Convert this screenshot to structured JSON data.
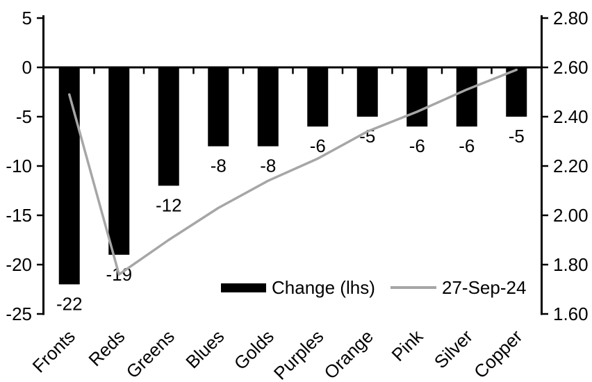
{
  "chart_data": {
    "type": "bar+line",
    "title": "",
    "background": "#ffffff",
    "categories": [
      "Fronts",
      "Reds",
      "Greens",
      "Blues",
      "Golds",
      "Purples",
      "Orange",
      "Pink",
      "Silver",
      "Copper"
    ],
    "series": [
      {
        "name": "Change (lhs)",
        "type": "bar",
        "axis": "left",
        "color": "#000000",
        "values": [
          -22,
          -19,
          -12,
          -8,
          -8,
          -6,
          -5,
          -6,
          -6,
          -5
        ],
        "data_labels": [
          "-22",
          "-19",
          "-12",
          "-8",
          "-8",
          "-6",
          "-5",
          "-6",
          "-6",
          "-5"
        ]
      },
      {
        "name": "27-Sep-24",
        "type": "line",
        "axis": "right",
        "color": "#a6a6a6",
        "values": [
          2.49,
          1.76,
          1.9,
          2.03,
          2.14,
          2.23,
          2.34,
          2.42,
          2.51,
          2.59
        ]
      }
    ],
    "left_axis": {
      "min": -25,
      "max": 5,
      "ticks": [
        "5",
        "0",
        "-5",
        "-10",
        "-15",
        "-20",
        "-25"
      ]
    },
    "right_axis": {
      "min": 1.6,
      "max": 2.8,
      "ticks": [
        "2.80",
        "2.60",
        "2.40",
        "2.20",
        "2.00",
        "1.80",
        "1.60"
      ]
    },
    "legend": {
      "position": "bottom-inside",
      "entries": [
        {
          "label": "Change (lhs)",
          "swatch": "bar",
          "color": "#000000"
        },
        {
          "label": "27-Sep-24",
          "swatch": "line",
          "color": "#a6a6a6"
        }
      ]
    },
    "grid": "off",
    "axis_color": "#000000"
  }
}
